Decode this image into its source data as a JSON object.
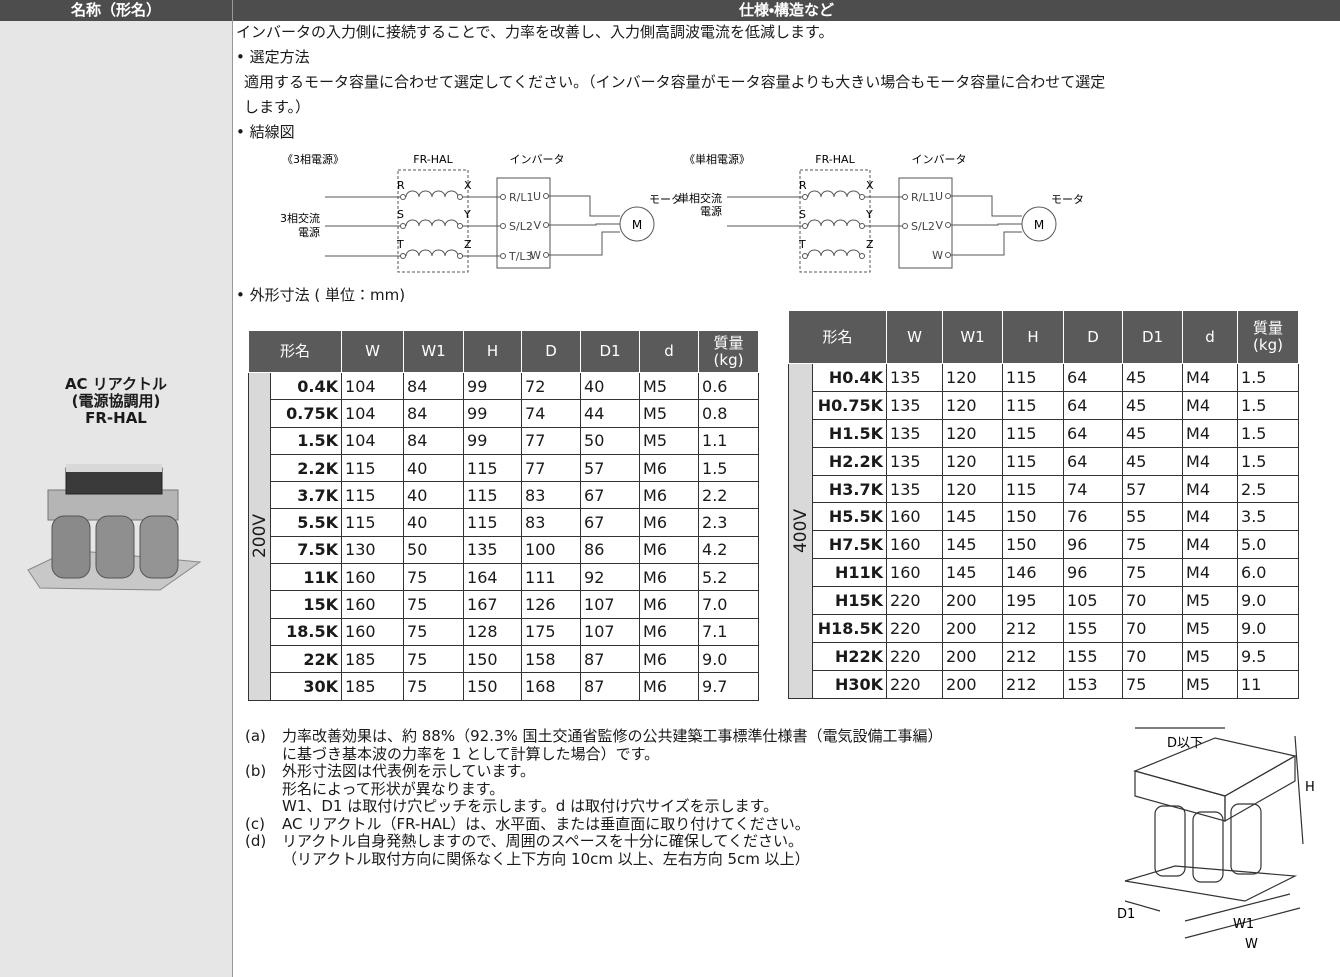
{
  "header": {
    "name_column": "名称（形名）",
    "spec_column": "仕様・構造など"
  },
  "product": {
    "name": [
      "AC リアクトル",
      "(電源協調用)",
      "FR-HAL"
    ]
  },
  "intro": "インバータの入力側に接続することで、力率を改善し、入力側高調波電流を低減します。",
  "selection": {
    "title": "• 選定方法",
    "lines": [
      "適用するモータ容量に合わせて選定してください。（インバータ容量がモータ容量よりも大きい場合もモータ容量に合わせて選定",
      "します。）"
    ]
  },
  "wiring": {
    "title": "• 結線図",
    "diagrams": [
      {
        "caption": "《3相電源》",
        "filter": "FR-HAL",
        "inverter": "インバータ",
        "inputs": [
          "R",
          "S",
          "T"
        ],
        "outputs": [
          "X",
          "Y",
          "Z"
        ],
        "inverter_inputs": [
          "R/L1",
          "S/L2",
          "T/L3"
        ],
        "inverter_outputs": [
          "U",
          "V",
          "W"
        ],
        "motor": "モータ",
        "motor_symbol": "M",
        "source": [
          "3相交流",
          "電源"
        ]
      },
      {
        "caption": "《単相電源》",
        "filter": "FR-HAL",
        "inverter": "インバータ",
        "inputs": [
          "R",
          "S",
          "T"
        ],
        "outputs": [
          "X",
          "Y",
          "Z"
        ],
        "inverter_inputs": [
          "R/L1",
          "S/L2"
        ],
        "inverter_outputs": [
          "U",
          "V",
          "W"
        ],
        "motor": "モータ",
        "motor_symbol": "M",
        "source": [
          "単相交流",
          "電源"
        ]
      }
    ]
  },
  "dimensions": {
    "title": "• 外形寸法 ( 単位：mm)",
    "tables": [
      {
        "voltage": "200V",
        "headers": [
          "形名",
          "W",
          "W1",
          "H",
          "D",
          "D1",
          "d",
          "質量\n(kg)"
        ],
        "rows": [
          [
            "0.4K",
            "104",
            "84",
            "99",
            "72",
            "40",
            "M5",
            "0.6"
          ],
          [
            "0.75K",
            "104",
            "84",
            "99",
            "74",
            "44",
            "M5",
            "0.8"
          ],
          [
            "1.5K",
            "104",
            "84",
            "99",
            "77",
            "50",
            "M5",
            "1.1"
          ],
          [
            "2.2K",
            "115",
            "40",
            "115",
            "77",
            "57",
            "M6",
            "1.5"
          ],
          [
            "3.7K",
            "115",
            "40",
            "115",
            "83",
            "67",
            "M6",
            "2.2"
          ],
          [
            "5.5K",
            "115",
            "40",
            "115",
            "83",
            "67",
            "M6",
            "2.3"
          ],
          [
            "7.5K",
            "130",
            "50",
            "135",
            "100",
            "86",
            "M6",
            "4.2"
          ],
          [
            "11K",
            "160",
            "75",
            "164",
            "111",
            "92",
            "M6",
            "5.2"
          ],
          [
            "15K",
            "160",
            "75",
            "167",
            "126",
            "107",
            "M6",
            "7.0"
          ],
          [
            "18.5K",
            "160",
            "75",
            "128",
            "175",
            "107",
            "M6",
            "7.1"
          ],
          [
            "22K",
            "185",
            "75",
            "150",
            "158",
            "87",
            "M6",
            "9.0"
          ],
          [
            "30K",
            "185",
            "75",
            "150",
            "168",
            "87",
            "M6",
            "9.7"
          ]
        ]
      },
      {
        "voltage": "400V",
        "headers": [
          "形名",
          "W",
          "W1",
          "H",
          "D",
          "D1",
          "d",
          "質量\n(kg)"
        ],
        "rows": [
          [
            "H0.4K",
            "135",
            "120",
            "115",
            "64",
            "45",
            "M4",
            "1.5"
          ],
          [
            "H0.75K",
            "135",
            "120",
            "115",
            "64",
            "45",
            "M4",
            "1.5"
          ],
          [
            "H1.5K",
            "135",
            "120",
            "115",
            "64",
            "45",
            "M4",
            "1.5"
          ],
          [
            "H2.2K",
            "135",
            "120",
            "115",
            "64",
            "45",
            "M4",
            "1.5"
          ],
          [
            "H3.7K",
            "135",
            "120",
            "115",
            "74",
            "57",
            "M4",
            "2.5"
          ],
          [
            "H5.5K",
            "160",
            "145",
            "150",
            "76",
            "55",
            "M4",
            "3.5"
          ],
          [
            "H7.5K",
            "160",
            "145",
            "150",
            "96",
            "75",
            "M4",
            "5.0"
          ],
          [
            "H11K",
            "160",
            "145",
            "146",
            "96",
            "75",
            "M4",
            "6.0"
          ],
          [
            "H15K",
            "220",
            "200",
            "195",
            "105",
            "70",
            "M5",
            "9.0"
          ],
          [
            "H18.5K",
            "220",
            "200",
            "212",
            "155",
            "70",
            "M5",
            "9.0"
          ],
          [
            "H22K",
            "220",
            "200",
            "212",
            "155",
            "70",
            "M5",
            "9.5"
          ],
          [
            "H30K",
            "220",
            "200",
            "212",
            "153",
            "75",
            "M5",
            "11"
          ]
        ]
      }
    ]
  },
  "notes": [
    {
      "label": "(a)",
      "lines": [
        "力率改善効果は、約 88%（92.3% 国土交通省監修の公共建築工事標準仕様書（電気設備工事編）",
        "に基づき基本波の力率を 1 として計算した場合）です。"
      ]
    },
    {
      "label": "(b)",
      "lines": [
        "外形寸法図は代表例を示しています。",
        "形名によって形状が異なります。",
        "W1、D1 は取付け穴ピッチを示します。d は取付け穴サイズを示します。"
      ]
    },
    {
      "label": "(c)",
      "lines": [
        "AC リアクトル（FR-HAL）は、水平面、または垂直面に取り付けてください。"
      ]
    },
    {
      "label": "(d)",
      "lines": [
        "リアクトル自身発熱しますので、周囲のスペースを十分に確保してください。",
        "（リアクトル取付方向に関係なく上下方向 10cm 以上、左右方向 5cm 以上）"
      ]
    }
  ],
  "figure": {
    "depth": "D以下",
    "height": "H",
    "d1": "D1",
    "w1": "W1",
    "width": "W"
  }
}
